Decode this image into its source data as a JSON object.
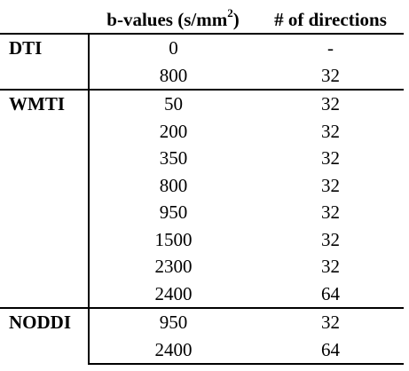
{
  "header": {
    "method": "",
    "bvalues_prefix": "b-values (s/mm",
    "bvalues_sup": "2",
    "bvalues_suffix": ")",
    "directions": "# of directions"
  },
  "groups": [
    {
      "method": "DTI",
      "rows": [
        {
          "b": "0",
          "dirs": "-"
        },
        {
          "b": "800",
          "dirs": "32"
        }
      ]
    },
    {
      "method": "WMTI",
      "rows": [
        {
          "b": "50",
          "dirs": "32"
        },
        {
          "b": "200",
          "dirs": "32"
        },
        {
          "b": "350",
          "dirs": "32"
        },
        {
          "b": "800",
          "dirs": "32"
        },
        {
          "b": "950",
          "dirs": "32"
        },
        {
          "b": "1500",
          "dirs": "32"
        },
        {
          "b": "2300",
          "dirs": "32"
        },
        {
          "b": "2400",
          "dirs": "64"
        }
      ]
    },
    {
      "method": "NODDI",
      "rows": [
        {
          "b": "950",
          "dirs": "32"
        },
        {
          "b": "2400",
          "dirs": "64"
        }
      ]
    }
  ]
}
